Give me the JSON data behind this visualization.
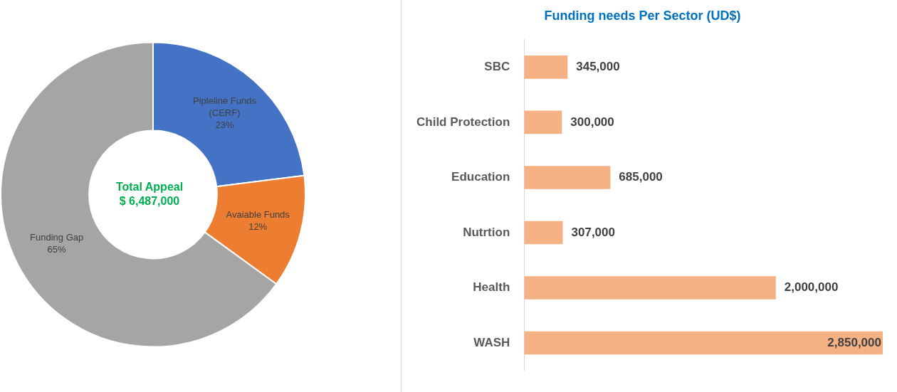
{
  "chart_data": [
    {
      "type": "donut",
      "categories": [
        "Pipleline Funds (CERF)",
        "Avaiable Funds",
        "Funding Gap"
      ],
      "values": [
        23,
        12,
        65
      ],
      "colors": [
        "#4472c4",
        "#ed7d31",
        "#a5a5a5"
      ],
      "legend": false,
      "value_labels": [
        "23%",
        "12%",
        "65%"
      ],
      "annotations": [
        "Total Appeal",
        "$ 6,487,000"
      ]
    },
    {
      "type": "bar",
      "orientation": "horizontal",
      "title": "Funding needs Per Sector (UD$)",
      "categories": [
        "SBC",
        "Child Protection",
        "Education",
        "Nutrtion",
        "Health",
        "WASH"
      ],
      "values": [
        345000,
        300000,
        685000,
        307000,
        2000000,
        2850000
      ],
      "color": "#f4b183",
      "value_labels": [
        "345,000",
        "300,000",
        "685,000",
        "307,000",
        "2,000,000",
        "2,850,000"
      ],
      "legend": false,
      "grid": false
    }
  ]
}
